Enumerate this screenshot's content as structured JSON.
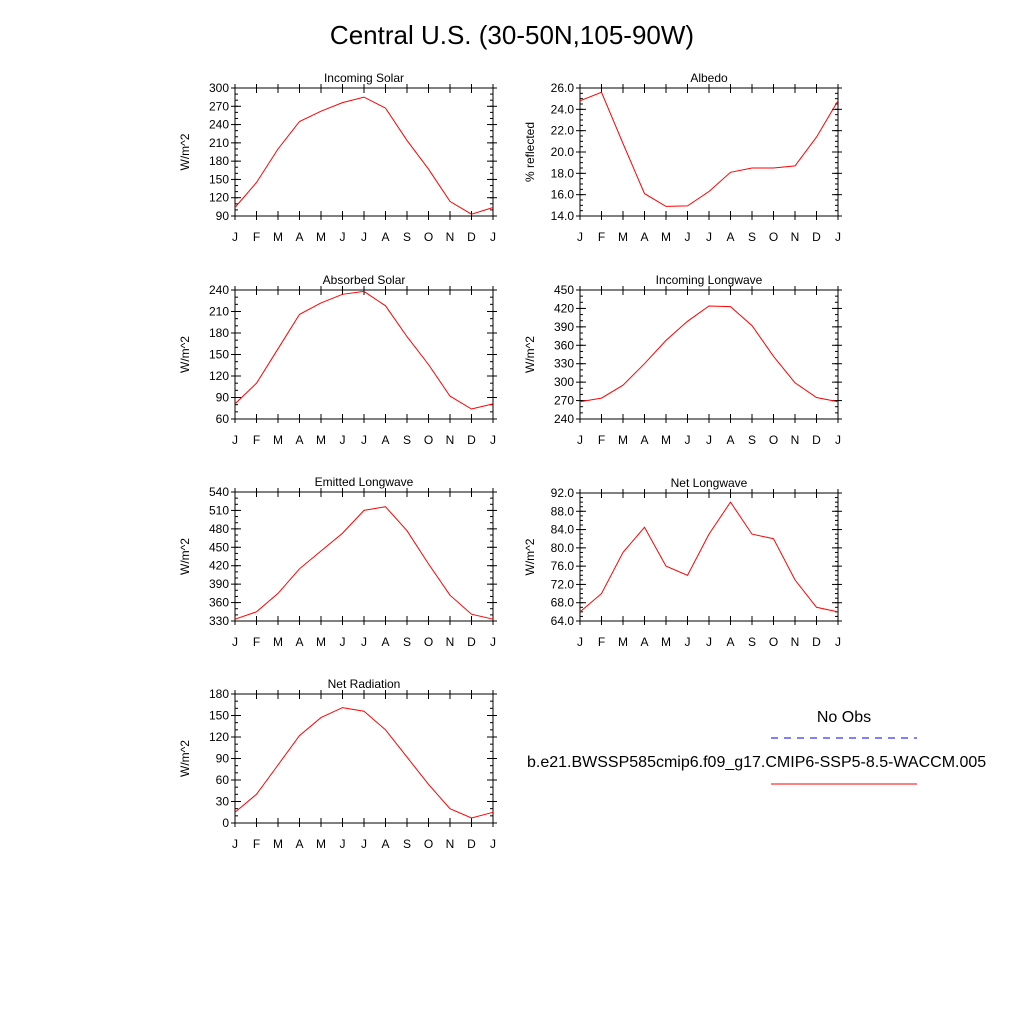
{
  "figure": {
    "title": "Central U.S. (30-50N,105-90W)",
    "months": [
      "J",
      "F",
      "M",
      "A",
      "M",
      "J",
      "J",
      "A",
      "S",
      "O",
      "N",
      "D",
      "J"
    ],
    "legend": {
      "obs_label": "No Obs",
      "obs_color": "#0000ff",
      "model_label": "b.e21.BWSSP585cmip6.f09_g17.CMIP6-SSP5-8.5-WACCM.005",
      "model_color": "#ff0000"
    }
  },
  "chart_data": [
    {
      "type": "line",
      "title": "Incoming Solar",
      "ylabel": "W/m^2",
      "ylim": [
        90,
        300
      ],
      "yticks": [
        "90",
        "120",
        "150",
        "180",
        "210",
        "240",
        "270",
        "300"
      ],
      "yminor_step": 10,
      "series": [
        {
          "values": [
            104,
            145,
            200,
            245,
            262,
            276,
            285,
            267,
            214,
            167,
            114,
            93,
            104
          ]
        }
      ]
    },
    {
      "type": "line",
      "title": "Albedo",
      "ylabel": "% reflected",
      "ylim": [
        14,
        26
      ],
      "yticks": [
        "14.0",
        "16.0",
        "18.0",
        "20.0",
        "22.0",
        "24.0",
        "26.0"
      ],
      "yminor_step": 0.5,
      "series": [
        {
          "values": [
            24.8,
            25.6,
            20.8,
            16.1,
            14.9,
            14.95,
            16.3,
            18.1,
            18.5,
            18.5,
            18.7,
            21.4,
            24.8
          ]
        }
      ]
    },
    {
      "type": "line",
      "title": "Absorbed Solar",
      "ylabel": "W/m^2",
      "ylim": [
        60,
        240
      ],
      "yticks": [
        "60",
        "90",
        "120",
        "150",
        "180",
        "210",
        "240"
      ],
      "yminor_step": 10,
      "series": [
        {
          "values": [
            81,
            110,
            158,
            206,
            222,
            234,
            238,
            218,
            175,
            136,
            92,
            74,
            81
          ]
        }
      ]
    },
    {
      "type": "line",
      "title": "Incoming Longwave",
      "ylabel": "W/m^2",
      "ylim": [
        240,
        450
      ],
      "yticks": [
        "240",
        "270",
        "300",
        "330",
        "360",
        "390",
        "420",
        "450"
      ],
      "yminor_step": 10,
      "series": [
        {
          "values": [
            268,
            274,
            295,
            330,
            368,
            399,
            424,
            423,
            392,
            342,
            299,
            275,
            268
          ]
        }
      ]
    },
    {
      "type": "line",
      "title": "Emitted Longwave",
      "ylabel": "W/m^2",
      "ylim": [
        330,
        540
      ],
      "yticks": [
        "330",
        "360",
        "390",
        "420",
        "450",
        "480",
        "510",
        "540"
      ],
      "yminor_step": 10,
      "series": [
        {
          "values": [
            333,
            345,
            375,
            415,
            444,
            473,
            510,
            516,
            477,
            423,
            372,
            341,
            333
          ]
        }
      ]
    },
    {
      "type": "line",
      "title": "Net Longwave",
      "ylabel": "W/m^2",
      "ylim": [
        64,
        92
      ],
      "yticks": [
        "64.0",
        "68.0",
        "72.0",
        "76.0",
        "80.0",
        "84.0",
        "88.0",
        "92.0"
      ],
      "yminor_step": 1,
      "series": [
        {
          "values": [
            66,
            70,
            79,
            84.5,
            76,
            74,
            83,
            90,
            83,
            82,
            73,
            67,
            66
          ]
        }
      ]
    },
    {
      "type": "line",
      "title": "Net Radiation",
      "ylabel": "W/m^2",
      "ylim": [
        0,
        180
      ],
      "yticks": [
        "0",
        "30",
        "60",
        "90",
        "120",
        "150",
        "180"
      ],
      "yminor_step": 10,
      "series": [
        {
          "values": [
            15,
            40,
            81,
            122,
            147,
            161,
            156,
            130,
            92,
            54,
            20,
            7,
            15
          ]
        }
      ]
    }
  ]
}
